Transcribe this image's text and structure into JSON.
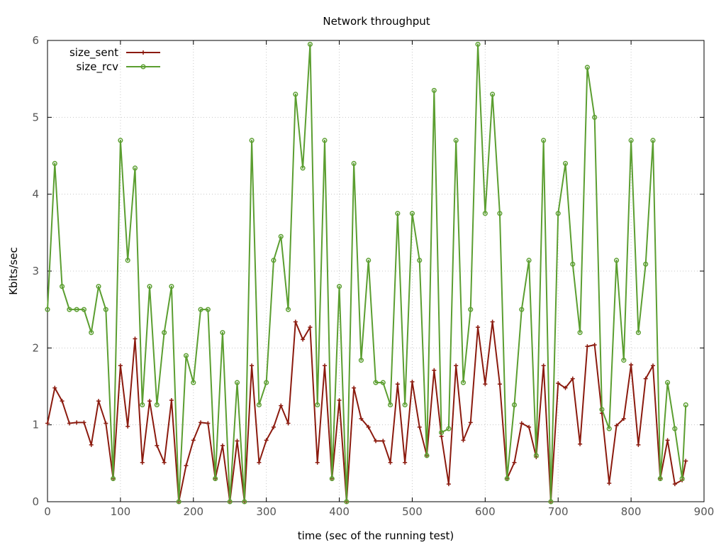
{
  "chart_data": {
    "type": "line",
    "title": "Network throughput",
    "xlabel": "time (sec of the running test)",
    "ylabel": "Kbits/sec",
    "xlim": [
      0,
      900
    ],
    "ylim": [
      0,
      6
    ],
    "xticks": [
      0,
      100,
      200,
      300,
      400,
      500,
      600,
      700,
      800,
      900
    ],
    "yticks": [
      0,
      1,
      2,
      3,
      4,
      5,
      6
    ],
    "grid": true,
    "legend_position": "top-left",
    "x": [
      0,
      10,
      20,
      30,
      40,
      50,
      60,
      70,
      80,
      90,
      100,
      110,
      120,
      130,
      140,
      150,
      160,
      170,
      180,
      190,
      200,
      210,
      220,
      230,
      240,
      250,
      260,
      270,
      280,
      290,
      300,
      310,
      320,
      330,
      340,
      350,
      360,
      370,
      380,
      390,
      400,
      410,
      420,
      430,
      440,
      450,
      460,
      470,
      480,
      490,
      500,
      510,
      520,
      530,
      540,
      550,
      560,
      570,
      580,
      590,
      600,
      610,
      620,
      630,
      640,
      650,
      660,
      670,
      680,
      690,
      700,
      710,
      720,
      730,
      740,
      750,
      760,
      770,
      780,
      790,
      800,
      810,
      820,
      830,
      840,
      850,
      860,
      870,
      875
    ],
    "series": [
      {
        "name": "size_sent",
        "color": "#8b1a0e",
        "marker": "plus",
        "values": [
          1.02,
          1.48,
          1.31,
          1.02,
          1.03,
          1.03,
          0.74,
          1.31,
          1.02,
          0.3,
          1.77,
          0.98,
          2.12,
          0.51,
          1.31,
          0.73,
          0.51,
          1.32,
          0.0,
          0.47,
          0.8,
          1.03,
          1.02,
          0.3,
          0.73,
          0.0,
          0.79,
          0.0,
          1.77,
          0.51,
          0.8,
          0.97,
          1.25,
          1.02,
          2.34,
          2.11,
          2.27,
          0.51,
          1.77,
          0.3,
          1.32,
          0.0,
          1.48,
          1.08,
          0.97,
          0.79,
          0.79,
          0.51,
          1.53,
          0.51,
          1.56,
          0.97,
          0.6,
          1.71,
          0.85,
          0.23,
          1.77,
          0.8,
          1.03,
          2.27,
          1.53,
          2.34,
          1.53,
          0.3,
          0.51,
          1.02,
          0.97,
          0.58,
          1.77,
          0.0,
          1.54,
          1.48,
          1.6,
          0.75,
          2.02,
          2.04,
          1.15,
          0.24,
          0.99,
          1.08,
          1.78,
          0.74,
          1.6,
          1.77,
          0.3,
          0.8,
          0.23,
          0.28,
          0.53
        ]
      },
      {
        "name": "size_rcv",
        "color": "#5b9e30",
        "marker": "circle",
        "values": [
          2.5,
          4.4,
          2.8,
          2.5,
          2.5,
          2.5,
          2.2,
          2.8,
          2.5,
          0.3,
          4.7,
          3.14,
          4.34,
          1.26,
          2.8,
          1.26,
          2.2,
          2.8,
          0.0,
          1.9,
          1.55,
          2.5,
          2.5,
          0.3,
          2.2,
          0.0,
          1.55,
          0.0,
          4.7,
          1.26,
          1.55,
          3.14,
          3.45,
          2.5,
          5.3,
          4.34,
          5.95,
          1.26,
          4.7,
          0.3,
          2.8,
          0.0,
          4.4,
          1.84,
          3.14,
          1.55,
          1.55,
          1.26,
          3.75,
          1.26,
          3.75,
          3.14,
          0.6,
          5.35,
          0.9,
          0.95,
          4.7,
          1.55,
          2.5,
          5.95,
          3.75,
          5.3,
          3.75,
          0.3,
          1.26,
          2.5,
          3.14,
          0.6,
          4.7,
          0.0,
          3.75,
          4.4,
          3.09,
          2.2,
          5.65,
          5.0,
          1.2,
          0.95,
          3.14,
          1.84,
          4.7,
          2.2,
          3.09,
          4.7,
          0.3,
          1.55,
          0.95,
          0.3,
          1.26
        ]
      }
    ]
  }
}
